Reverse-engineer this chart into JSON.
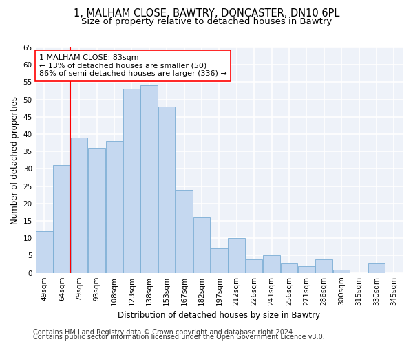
{
  "title_line1": "1, MALHAM CLOSE, BAWTRY, DONCASTER, DN10 6PL",
  "title_line2": "Size of property relative to detached houses in Bawtry",
  "xlabel": "Distribution of detached houses by size in Bawtry",
  "ylabel": "Number of detached properties",
  "bar_color": "#c5d8f0",
  "bar_edge_color": "#7aadd4",
  "categories": [
    "49sqm",
    "64sqm",
    "79sqm",
    "93sqm",
    "108sqm",
    "123sqm",
    "138sqm",
    "153sqm",
    "167sqm",
    "182sqm",
    "197sqm",
    "212sqm",
    "226sqm",
    "241sqm",
    "256sqm",
    "271sqm",
    "286sqm",
    "300sqm",
    "315sqm",
    "330sqm",
    "345sqm"
  ],
  "values": [
    12,
    31,
    39,
    36,
    38,
    53,
    54,
    48,
    24,
    16,
    7,
    10,
    4,
    5,
    3,
    2,
    4,
    1,
    0,
    3,
    0
  ],
  "redline_bar_index": 2,
  "ylim": [
    0,
    65
  ],
  "yticks": [
    0,
    5,
    10,
    15,
    20,
    25,
    30,
    35,
    40,
    45,
    50,
    55,
    60,
    65
  ],
  "ann_title": "1 MALHAM CLOSE: 83sqm",
  "ann_line2": "← 13% of detached houses are smaller (50)",
  "ann_line3": "86% of semi-detached houses are larger (336) →",
  "footer_line1": "Contains HM Land Registry data © Crown copyright and database right 2024.",
  "footer_line2": "Contains public sector information licensed under the Open Government Licence v3.0.",
  "bg_color": "#eef2f9",
  "grid_color": "#ffffff",
  "title_fontsize": 10.5,
  "subtitle_fontsize": 9.5,
  "axis_label_fontsize": 8.5,
  "tick_fontsize": 7.5,
  "annotation_fontsize": 8,
  "footer_fontsize": 7
}
